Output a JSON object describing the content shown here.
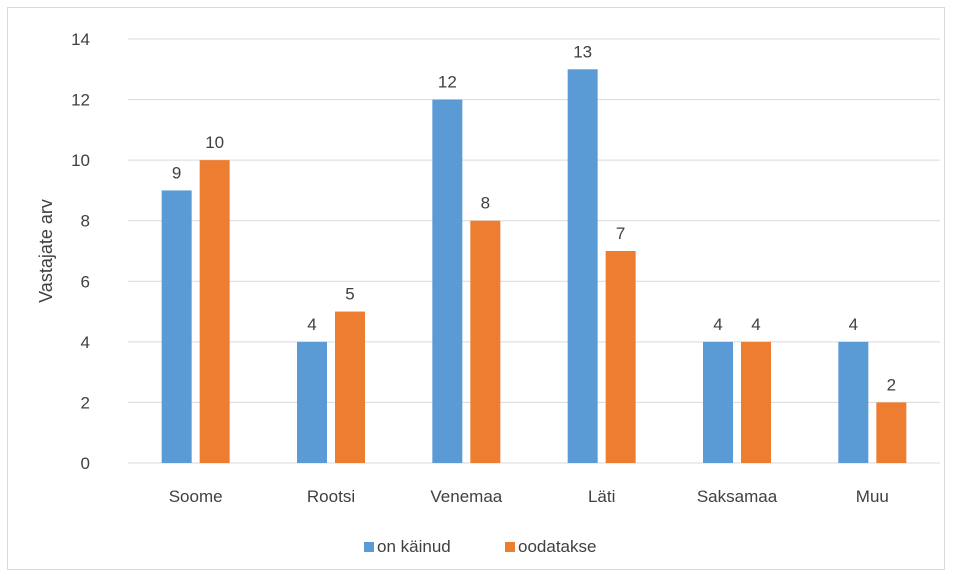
{
  "chart_data": {
    "type": "bar",
    "title": "",
    "xlabel": "",
    "ylabel": "Vastajate arv",
    "categories": [
      "Soome",
      "Rootsi",
      "Venemaa",
      "Läti",
      "Saksamaa",
      "Muu"
    ],
    "series": [
      {
        "name": "on käinud",
        "color": "#5B9BD5",
        "values": [
          9,
          4,
          12,
          13,
          4,
          4
        ]
      },
      {
        "name": "oodatakse",
        "color": "#ED7D31",
        "values": [
          10,
          5,
          8,
          7,
          4,
          2
        ]
      }
    ],
    "ylim": [
      0,
      14
    ],
    "yticks": [
      0,
      2,
      4,
      6,
      8,
      10,
      12,
      14
    ],
    "grid": true,
    "data_labels": true,
    "legend_position": "bottom"
  }
}
